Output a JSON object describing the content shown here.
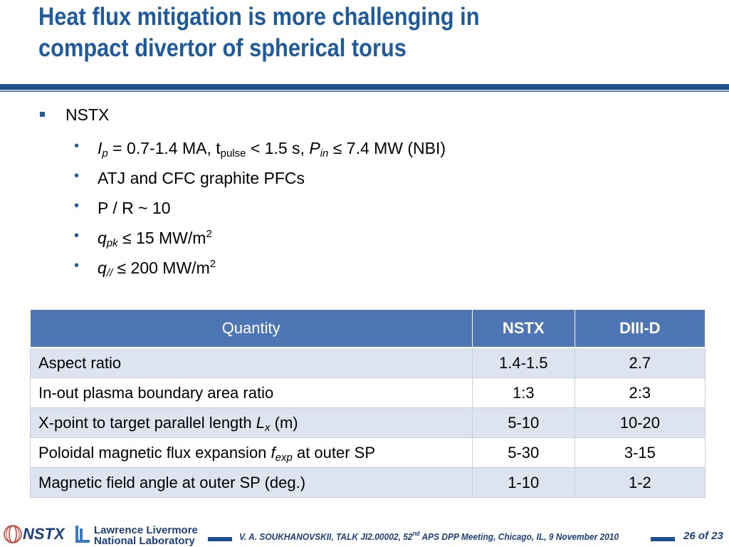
{
  "slide": {
    "title_line1": "Heat flux mitigation is more challenging in",
    "title_line2": "compact divertor of spherical torus"
  },
  "bullets": {
    "level1": "NSTX",
    "items": [
      {
        "parts": {
          "a": "I",
          "a_sub": "p",
          "b": " = 0.7-1.4 MA, t",
          "b_sub": "pulse",
          "c": " < 1.5 s, ",
          "d": "P",
          "d_sub": "in",
          "e": " ≤ 7.4 MW (NBI)"
        }
      },
      {
        "text": "ATJ and CFC graphite PFCs"
      },
      {
        "text": "P / R ~ 10"
      },
      {
        "parts": {
          "a": "q",
          "a_sub": "pk",
          "b": " ≤ 15 MW/m",
          "b_sup": "2"
        }
      },
      {
        "parts": {
          "a": "q",
          "a_sub": "//",
          "b": " ≤ 200 MW/m",
          "b_sup": "2"
        }
      }
    ]
  },
  "table": {
    "headers": [
      "Quantity",
      "NSTX",
      "DIII-D"
    ],
    "rows": [
      {
        "quantity": "Aspect ratio",
        "nstx": "1.4-1.5",
        "diiid": "2.7"
      },
      {
        "quantity": "In-out plasma boundary area ratio",
        "nstx": "1:3",
        "diiid": "2:3"
      },
      {
        "quantity_pre": "X-point to target parallel length ",
        "quantity_var": "L",
        "quantity_sub": "x",
        "quantity_post": " (m)",
        "nstx": "5-10",
        "diiid": "10-20"
      },
      {
        "quantity_pre": "Poloidal magnetic flux expansion ",
        "quantity_var": "f",
        "quantity_sub": "exp",
        "quantity_post": " at outer SP",
        "nstx": "5-30",
        "diiid": "3-15"
      },
      {
        "quantity": "Magnetic field angle at outer SP (deg.)",
        "nstx": "1-10",
        "diiid": "1-2"
      }
    ]
  },
  "footer": {
    "nstx_logo_text": "NSTX",
    "llnl_line1": "Lawrence Livermore",
    "llnl_line2": "National Laboratory",
    "citation_pre": "V. A. SOUKHANOVSKII, TALK JI2.00002, 52",
    "citation_sup": "nd",
    "citation_post": " APS DPP Meeting, Chicago, IL, 9 November 2010",
    "page": "26 of 23"
  },
  "colors": {
    "title": "#1f5a9b",
    "rule": "#1f4f8f",
    "header_fill": "#4e76b5",
    "row_alt": "#dde4ef"
  }
}
